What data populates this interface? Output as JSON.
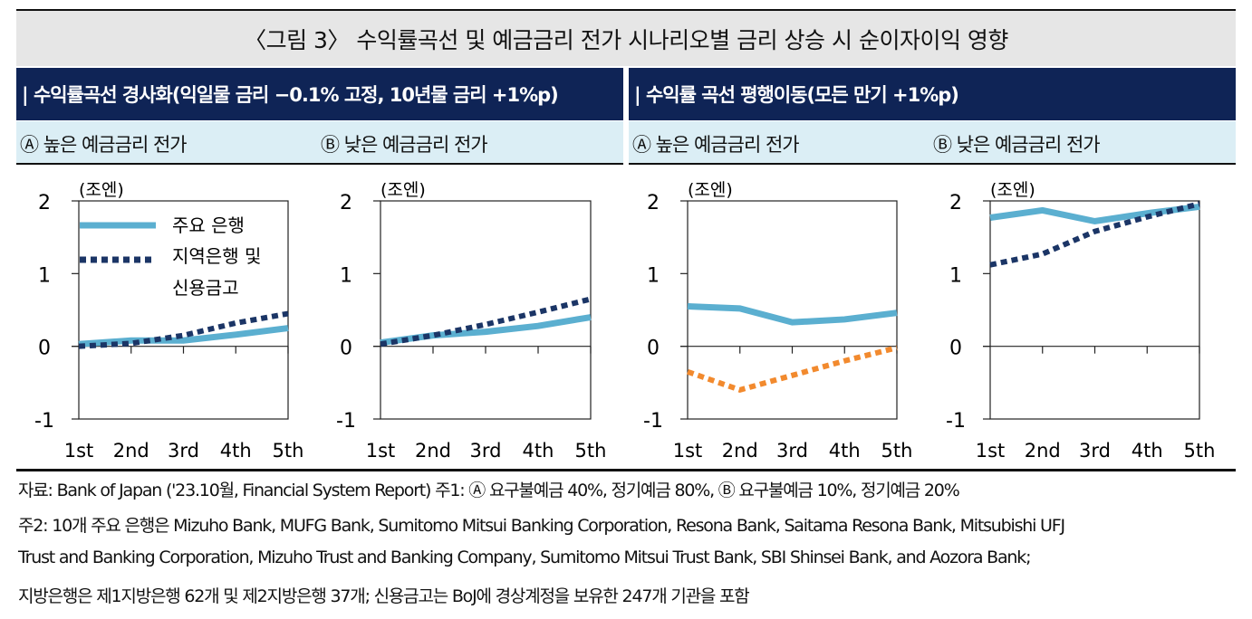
{
  "title": "〈그림 3〉 수익률곡선 및 예금금리 전가 시나리오별 금리 상승 시 순이자이익 영향",
  "sections": [
    {
      "label": "| 수익률곡선 경사화(익일물 금리 −0.1% 고정, 10년물 금리 +1%p)",
      "sub_a": "Ⓐ 높은 예금금리 전가",
      "sub_b": "Ⓑ 낮은 예금금리 전가"
    },
    {
      "label": "| 수익률 곡선 평행이동(모든 만기 +1%p)",
      "sub_a": "Ⓐ 높은 예금금리 전가",
      "sub_b": "Ⓑ 낮은 예금금리 전가"
    }
  ],
  "legend": {
    "main": "주요 은행",
    "regional_line1": "지역은행 및",
    "regional_line2": "신용금고"
  },
  "colors": {
    "main": "#5bafd0",
    "regional": "#1b3566",
    "orange": "#f28a2e",
    "navy_header": "#0f2456",
    "subheader": "#dbeef5"
  },
  "chart_data": [
    {
      "type": "line",
      "ylabel": "(조엔)",
      "categories": [
        "1st",
        "2nd",
        "3rd",
        "4th",
        "5th"
      ],
      "ylim": [
        -1,
        2
      ],
      "yticks": [
        "2",
        "1",
        "0",
        "-1"
      ],
      "series": [
        {
          "name": "주요 은행",
          "values": [
            0.03,
            0.08,
            0.08,
            0.16,
            0.25
          ]
        },
        {
          "name": "지역은행 및 신용금고",
          "values": [
            0.0,
            0.04,
            0.15,
            0.32,
            0.45
          ]
        }
      ]
    },
    {
      "type": "line",
      "ylabel": "(조엔)",
      "categories": [
        "1st",
        "2nd",
        "3rd",
        "4th",
        "5th"
      ],
      "ylim": [
        -1,
        2
      ],
      "yticks": [
        "2",
        "1",
        "0",
        "-1"
      ],
      "series": [
        {
          "name": "주요 은행",
          "values": [
            0.05,
            0.15,
            0.2,
            0.28,
            0.4
          ]
        },
        {
          "name": "지역은행 및 신용금고",
          "values": [
            0.03,
            0.15,
            0.3,
            0.47,
            0.65
          ]
        }
      ]
    },
    {
      "type": "line",
      "ylabel": "(조엔)",
      "categories": [
        "1st",
        "2nd",
        "3rd",
        "4th",
        "5th"
      ],
      "ylim": [
        -1,
        2
      ],
      "yticks": [
        "2",
        "1",
        "0",
        "-1"
      ],
      "series": [
        {
          "values": [
            0.55,
            0.52,
            0.33,
            0.37,
            0.46
          ]
        },
        {
          "values": [
            -0.35,
            -0.6,
            -0.4,
            -0.2,
            -0.02
          ],
          "color": "orange"
        }
      ]
    },
    {
      "type": "line",
      "ylabel": "(조엔)",
      "categories": [
        "1st",
        "2nd",
        "3rd",
        "4th",
        "5th"
      ],
      "ylim": [
        -1,
        2
      ],
      "yticks": [
        "2",
        "1",
        "0",
        "-1"
      ],
      "series": [
        {
          "name": "주요 은행",
          "values": [
            1.77,
            1.87,
            1.72,
            1.83,
            1.92
          ]
        },
        {
          "name": "지역은행 및 신용금고",
          "values": [
            1.12,
            1.27,
            1.58,
            1.78,
            1.96
          ]
        }
      ]
    }
  ],
  "notes": [
    "자료: Bank of Japan ('23.10월, Financial System Report)  주1: Ⓐ 요구불예금 40%, 정기예금 80%, Ⓑ 요구불예금 10%, 정기예금 20%",
    "주2: 10개 주요 은행은 Mizuho Bank, MUFG Bank, Sumitomo Mitsui Banking Corporation, Resona Bank, Saitama Resona Bank, Mitsubishi UFJ",
    "Trust and Banking Corporation, Mizuho Trust and Banking Company, Sumitomo Mitsui Trust Bank, SBI Shinsei Bank, and Aozora Bank;",
    "지방은행은 제1지방은행 62개 및 제2지방은행 37개; 신용금고는 BoJ에 경상계정을 보유한 247개 기관을 포함"
  ]
}
